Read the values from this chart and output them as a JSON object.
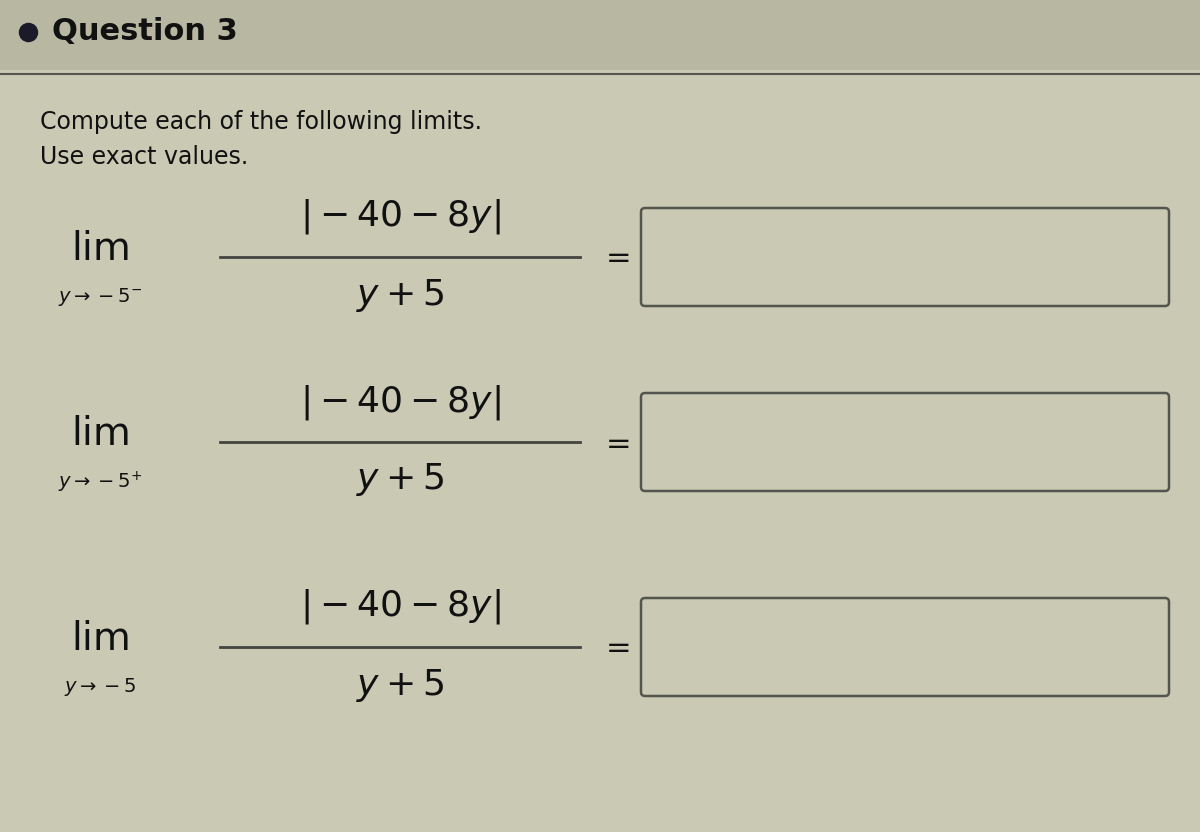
{
  "title": "Question 3",
  "bullet_color": "#1a1a2a",
  "bg_color": "#c9c9b4",
  "header_bg": "#b8b8a2",
  "title_fontsize": 22,
  "instruction_line1": "Compute each of the following limits.",
  "instruction_line2": "Use exact values.",
  "lim_subscripts_latex": [
    "$y \\rightarrow -5^{-}$",
    "$y \\rightarrow -5^{+}$",
    "$y \\rightarrow -5$"
  ],
  "text_color": "#111111",
  "box_facecolor": "#c9c9b4",
  "box_edgecolor": "#555550",
  "line_color": "#444440",
  "separator_color": "#555550"
}
